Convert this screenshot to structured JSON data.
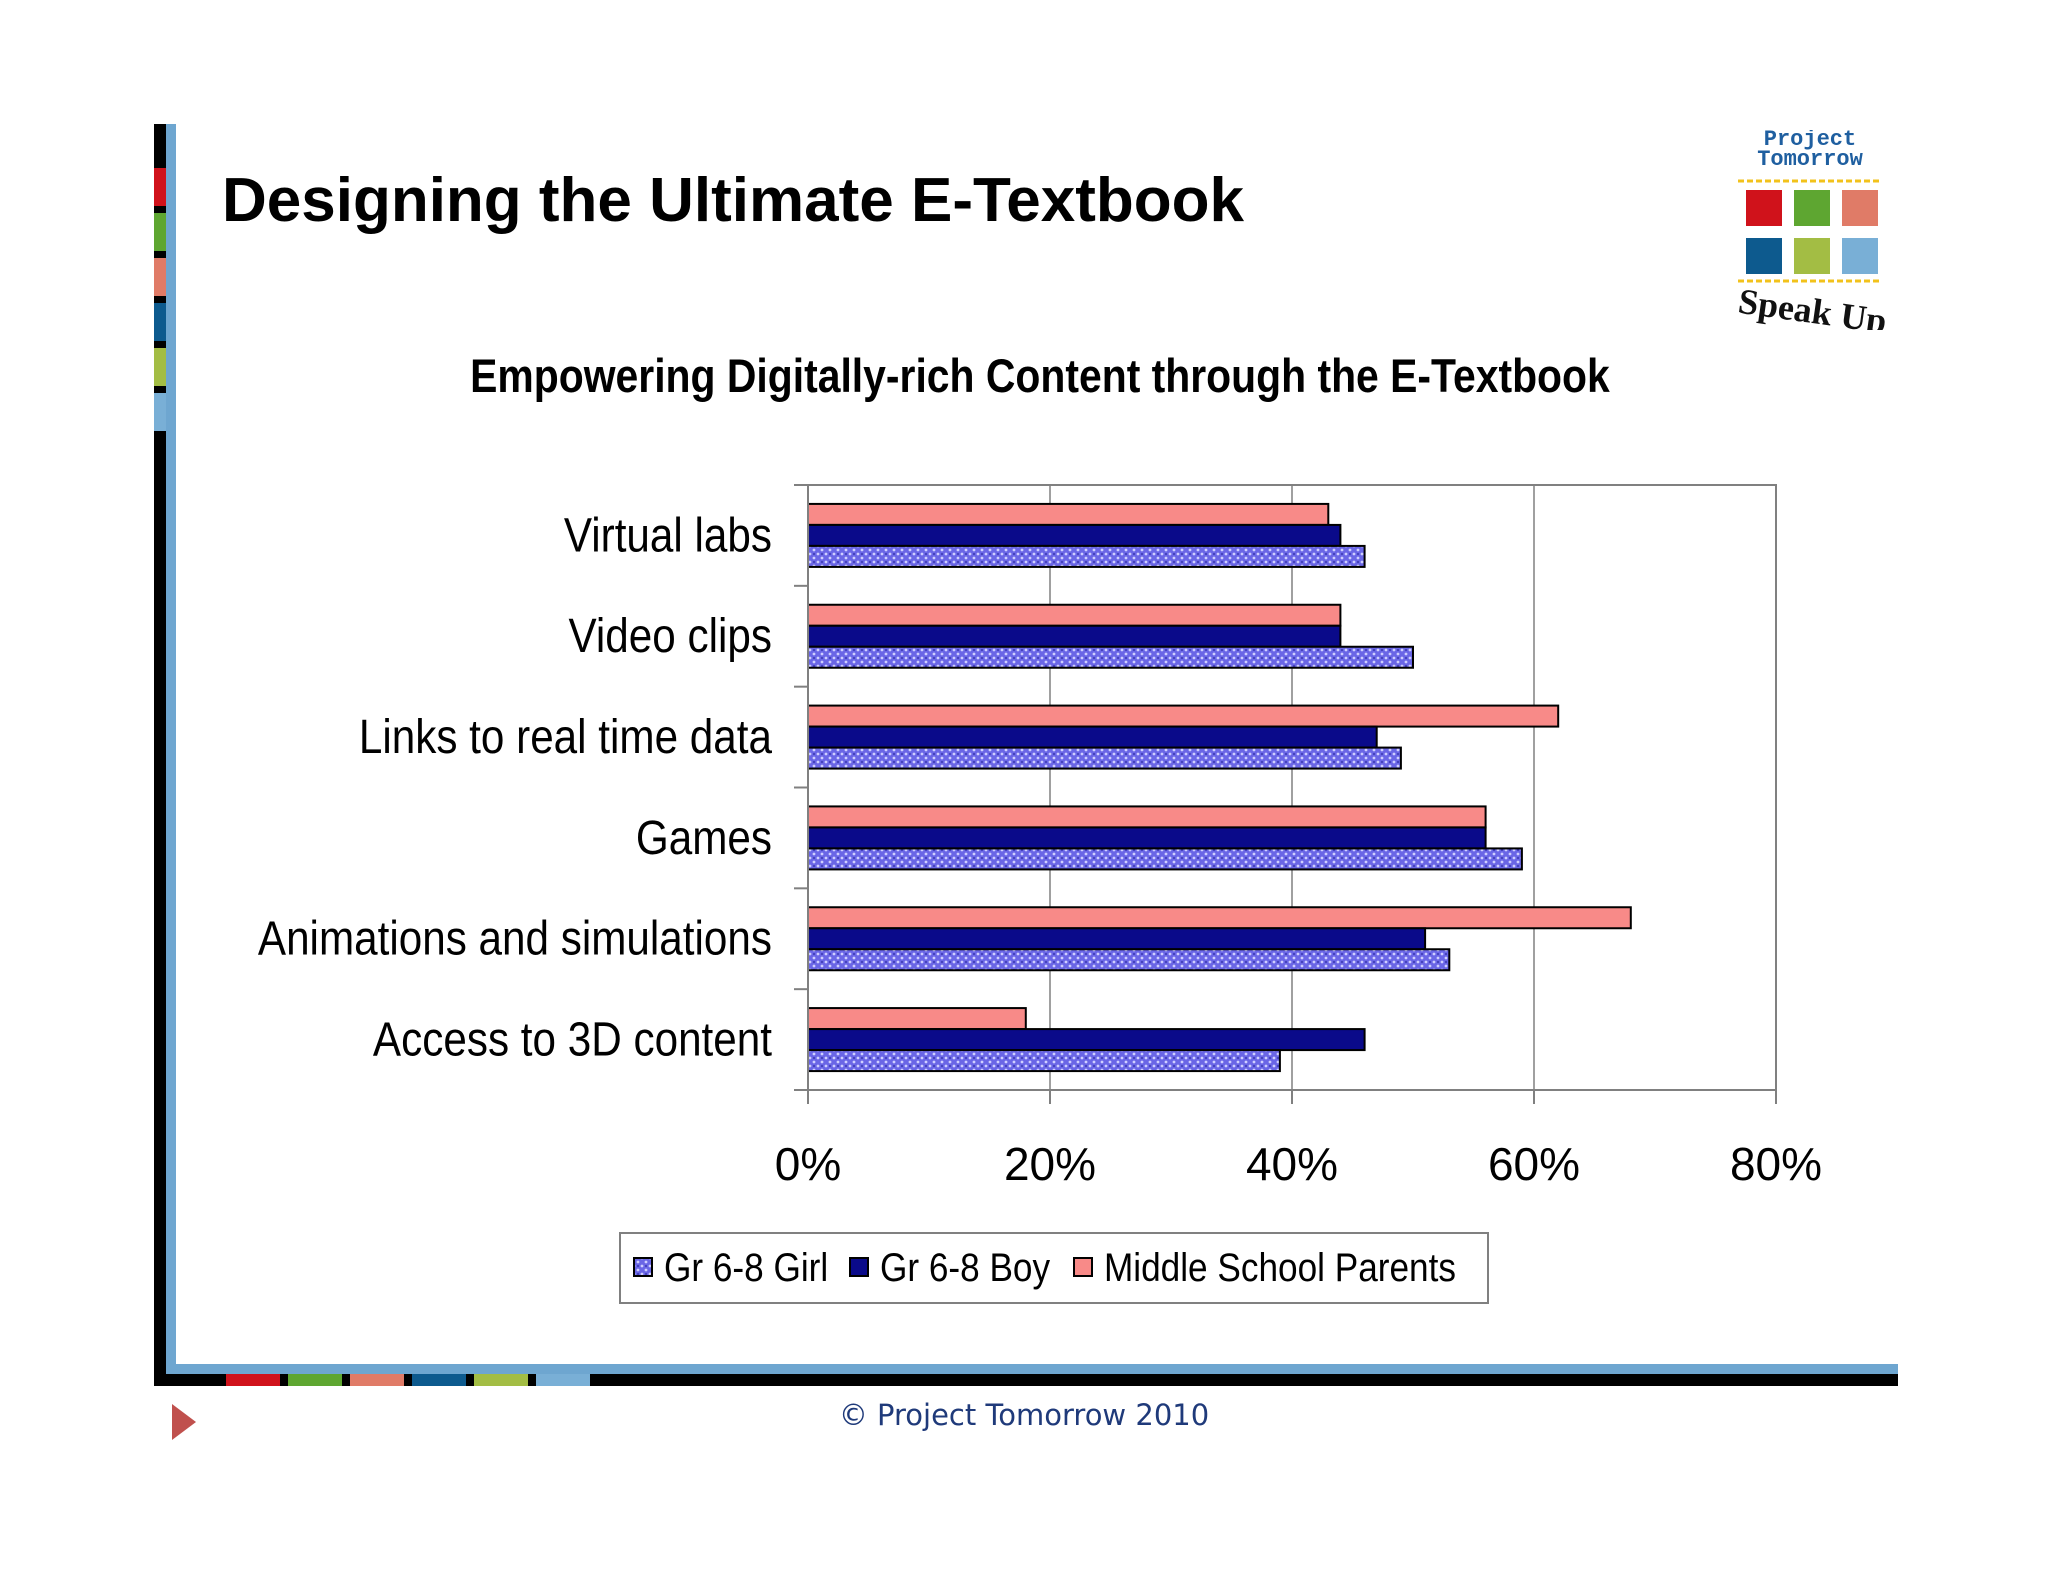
{
  "slide": {
    "title": "Designing the Ultimate E-Textbook",
    "footer": "© Project Tomorrow 2010"
  },
  "logo": {
    "name_line1": "Project",
    "name_line2": "Tomorrow",
    "tagline": "Speak Up",
    "square_colors": [
      "#d0121b",
      "#5ea631",
      "#e07b67",
      "#0d5a8e",
      "#a3bd44",
      "#79afd6"
    ]
  },
  "colors": {
    "girl": "#6a66e6",
    "boy": "#0a0a8a",
    "parents": "#f88a88",
    "frame_blue": "#6ea6d0"
  },
  "chart_data": {
    "type": "bar",
    "orientation": "horizontal",
    "title": "Empowering Digitally-rich Content through the E-Textbook",
    "categories": [
      "Virtual labs",
      "Video clips",
      "Links to real time data",
      "Games",
      "Animations and simulations",
      "Access to 3D content"
    ],
    "series": [
      {
        "name": "Gr 6-8 Girl",
        "values": [
          46,
          50,
          49,
          59,
          53,
          39
        ]
      },
      {
        "name": "Gr 6-8 Boy",
        "values": [
          44,
          44,
          47,
          56,
          51,
          46
        ]
      },
      {
        "name": "Middle School Parents",
        "values": [
          43,
          44,
          62,
          56,
          68,
          18
        ]
      }
    ],
    "xlim": [
      0,
      80
    ],
    "xticks": [
      "0%",
      "20%",
      "40%",
      "60%",
      "80%"
    ],
    "grid": true,
    "legend": "bottom"
  }
}
